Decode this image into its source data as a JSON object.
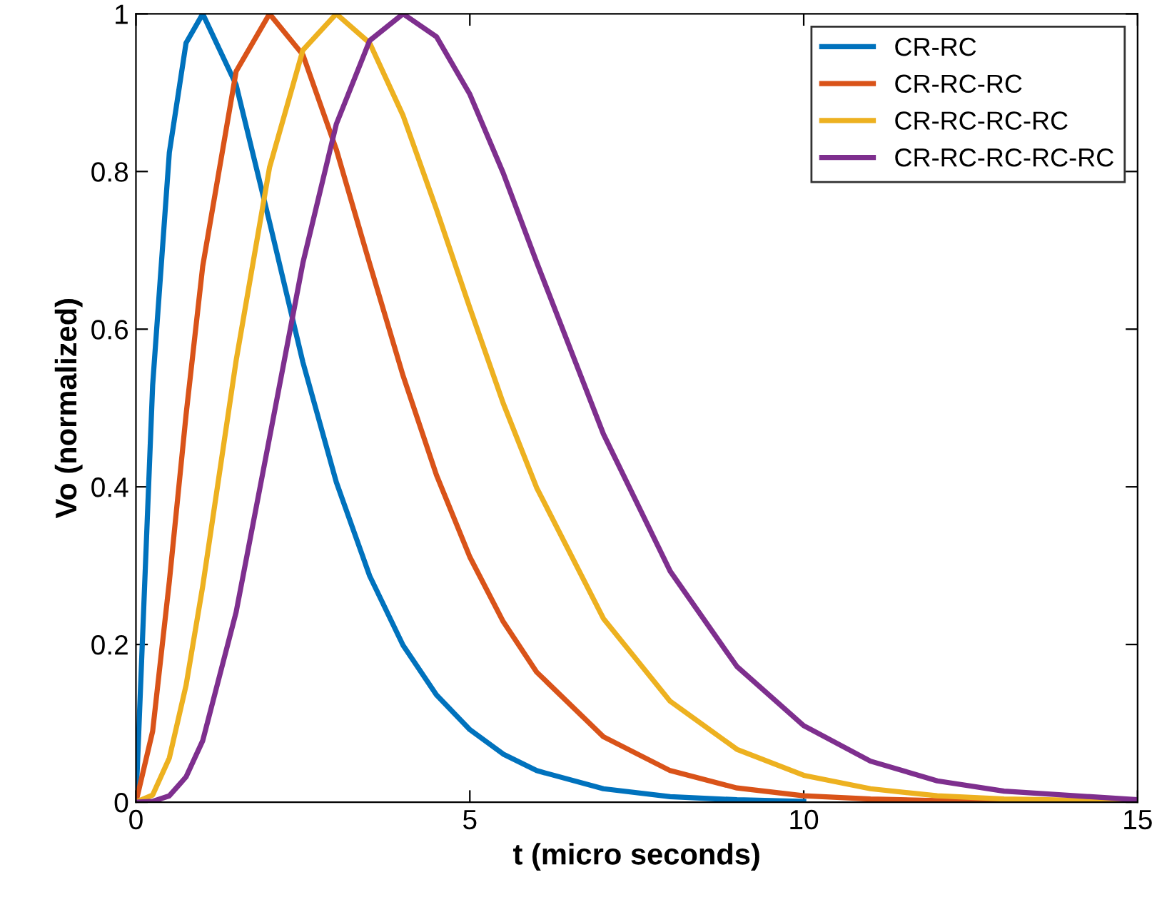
{
  "chart_data": {
    "type": "line",
    "xlabel": "t (micro seconds)",
    "ylabel": "Vo (normalized)",
    "x": [
      0,
      0.25,
      0.5,
      0.75,
      1,
      1.5,
      2,
      2.5,
      3,
      3.5,
      4,
      4.5,
      5,
      5.5,
      6,
      7,
      8,
      9,
      10,
      11,
      12,
      13,
      15
    ],
    "series": [
      {
        "name": "CR-RC",
        "color": "#0072bd",
        "values": [
          0,
          0.529,
          0.824,
          0.963,
          1,
          0.91,
          0.736,
          0.558,
          0.406,
          0.287,
          0.199,
          0.136,
          0.092,
          0.061,
          0.04,
          0.017,
          0.007,
          0.003,
          0.001,
          null,
          null,
          null,
          null
        ]
      },
      {
        "name": "CR-RC-RC",
        "color": "#d95319",
        "values": [
          0,
          0.09,
          0.28,
          0.491,
          0.68,
          0.927,
          1,
          0.948,
          0.828,
          0.683,
          0.541,
          0.415,
          0.311,
          0.229,
          0.165,
          0.083,
          0.04,
          0.018,
          0.008,
          0.004,
          0.002,
          0.001,
          0
        ]
      },
      {
        "name": "CR-RC-RC-RC",
        "color": "#edb120",
        "values": [
          0,
          0.009,
          0.056,
          0.148,
          0.274,
          0.56,
          0.805,
          0.954,
          1,
          0.963,
          0.871,
          0.752,
          0.627,
          0.506,
          0.399,
          0.233,
          0.128,
          0.067,
          0.034,
          0.017,
          0.008,
          0.004,
          0.001
        ]
      },
      {
        "name": "CR-RC-RC-RC-RC",
        "color": "#7e2f8e",
        "values": [
          0,
          0.001,
          0.008,
          0.032,
          0.078,
          0.241,
          0.462,
          0.684,
          0.86,
          0.966,
          1,
          0.971,
          0.898,
          0.798,
          0.685,
          0.467,
          0.293,
          0.172,
          0.097,
          0.052,
          0.027,
          0.014,
          0.003
        ]
      }
    ],
    "xlim": [
      0,
      15
    ],
    "xticks": [
      0,
      5,
      10,
      15
    ],
    "ylim": [
      0,
      1
    ],
    "yticks": [
      0,
      0.2,
      0.4,
      0.6,
      0.8,
      1
    ],
    "legend": "top right",
    "grid": false,
    "line_style": "solid",
    "marker": "none"
  }
}
